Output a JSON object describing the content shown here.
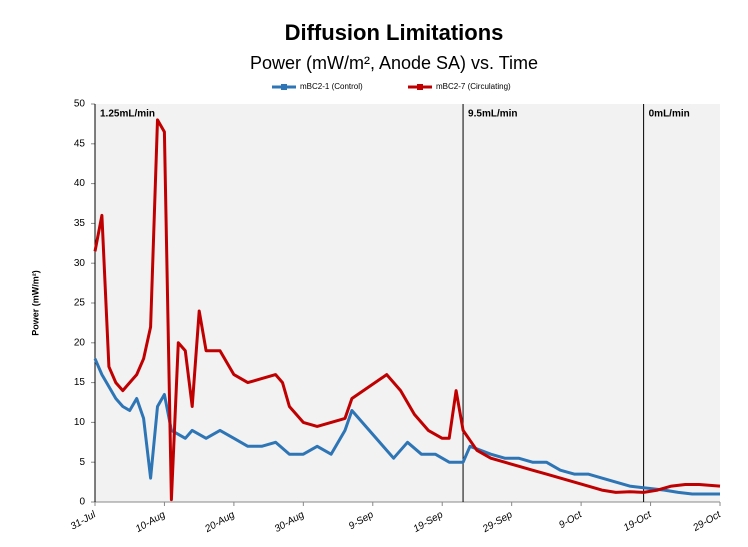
{
  "chart_data": {
    "type": "line",
    "title": "Diffusion Limitations",
    "subtitle": "Power (mW/m², Anode SA) vs. Time",
    "y_label": "Power (mW/m²)",
    "ylim": [
      0,
      50
    ],
    "yticks": [
      0,
      5,
      10,
      15,
      20,
      25,
      30,
      35,
      40,
      45,
      50
    ],
    "xlim": [
      "31-Jul",
      "29-Oct"
    ],
    "xticks": [
      "31-Jul",
      "10-Aug",
      "20-Aug",
      "30-Aug",
      "9-Sep",
      "19-Sep",
      "29-Sep",
      "9-Oct",
      "19-Oct",
      "29-Oct"
    ],
    "grid": false,
    "legend": "top",
    "annotations": [
      {
        "text": "1.25mL/min",
        "x": "31-Jul"
      },
      {
        "text": "9.5mL/min",
        "x": "22-Sep"
      },
      {
        "text": "0mL/min",
        "x": "18-Oct"
      }
    ],
    "series": [
      {
        "name": "mBC2-1 (Control)",
        "color": "#2e75b6",
        "x": [
          "31-Jul",
          "1-Aug",
          "2-Aug",
          "3-Aug",
          "4-Aug",
          "5-Aug",
          "6-Aug",
          "7-Aug",
          "8-Aug",
          "9-Aug",
          "10-Aug",
          "11-Aug",
          "12-Aug",
          "13-Aug",
          "14-Aug",
          "16-Aug",
          "18-Aug",
          "20-Aug",
          "22-Aug",
          "24-Aug",
          "26-Aug",
          "28-Aug",
          "30-Aug",
          "1-Sep",
          "3-Sep",
          "5-Sep",
          "6-Sep",
          "12-Sep",
          "14-Sep",
          "16-Sep",
          "18-Sep",
          "20-Sep",
          "22-Sep",
          "23-Sep",
          "26-Sep",
          "28-Sep",
          "30-Sep",
          "2-Oct",
          "4-Oct",
          "6-Oct",
          "8-Oct",
          "10-Oct",
          "12-Oct",
          "14-Oct",
          "16-Oct",
          "18-Oct",
          "21-Oct",
          "23-Oct",
          "25-Oct",
          "27-Oct",
          "29-Oct"
        ],
        "values": [
          18,
          16,
          14.5,
          13,
          12,
          11.5,
          13,
          10.5,
          3,
          12,
          13.5,
          9,
          8.5,
          8,
          9,
          8,
          9,
          8,
          7,
          7,
          7.5,
          6,
          6,
          7,
          6,
          9,
          11.5,
          5.5,
          7.5,
          6,
          6,
          5,
          5,
          7,
          6,
          5.5,
          5.5,
          5,
          5,
          4,
          3.5,
          3.5,
          3,
          2.5,
          2,
          1.8,
          1.5,
          1.2,
          1,
          1,
          1
        ]
      },
      {
        "name": "mBC2-7 (Circulating)",
        "color": "#c00000",
        "x": [
          "31-Jul",
          "1-Aug",
          "2-Aug",
          "3-Aug",
          "4-Aug",
          "5-Aug",
          "6-Aug",
          "7-Aug",
          "8-Aug",
          "9-Aug",
          "10-Aug",
          "11-Aug",
          "12-Aug",
          "13-Aug",
          "14-Aug",
          "15-Aug",
          "16-Aug",
          "18-Aug",
          "20-Aug",
          "22-Aug",
          "24-Aug",
          "26-Aug",
          "27-Aug",
          "28-Aug",
          "30-Aug",
          "1-Sep",
          "3-Sep",
          "5-Sep",
          "6-Sep",
          "11-Sep",
          "13-Sep",
          "15-Sep",
          "17-Sep",
          "19-Sep",
          "20-Sep",
          "21-Sep",
          "22-Sep",
          "24-Sep",
          "26-Sep",
          "28-Sep",
          "30-Sep",
          "2-Oct",
          "4-Oct",
          "6-Oct",
          "8-Oct",
          "10-Oct",
          "12-Oct",
          "14-Oct",
          "16-Oct",
          "18-Oct",
          "20-Oct",
          "22-Oct",
          "24-Oct",
          "26-Oct",
          "29-Oct"
        ],
        "values": [
          31.5,
          36,
          17,
          15,
          14,
          15,
          16,
          18,
          22,
          48,
          46.5,
          0.3,
          20,
          19,
          12,
          24,
          19,
          19,
          16,
          15,
          15.5,
          16,
          15,
          12,
          10,
          9.5,
          10,
          10.5,
          13,
          16,
          14,
          11,
          9,
          8,
          8,
          14,
          9,
          6.5,
          5.5,
          5,
          4.5,
          4,
          3.5,
          3,
          2.5,
          2,
          1.5,
          1.2,
          1.3,
          1.2,
          1.5,
          2,
          2.2,
          2.2,
          2
        ]
      }
    ]
  }
}
